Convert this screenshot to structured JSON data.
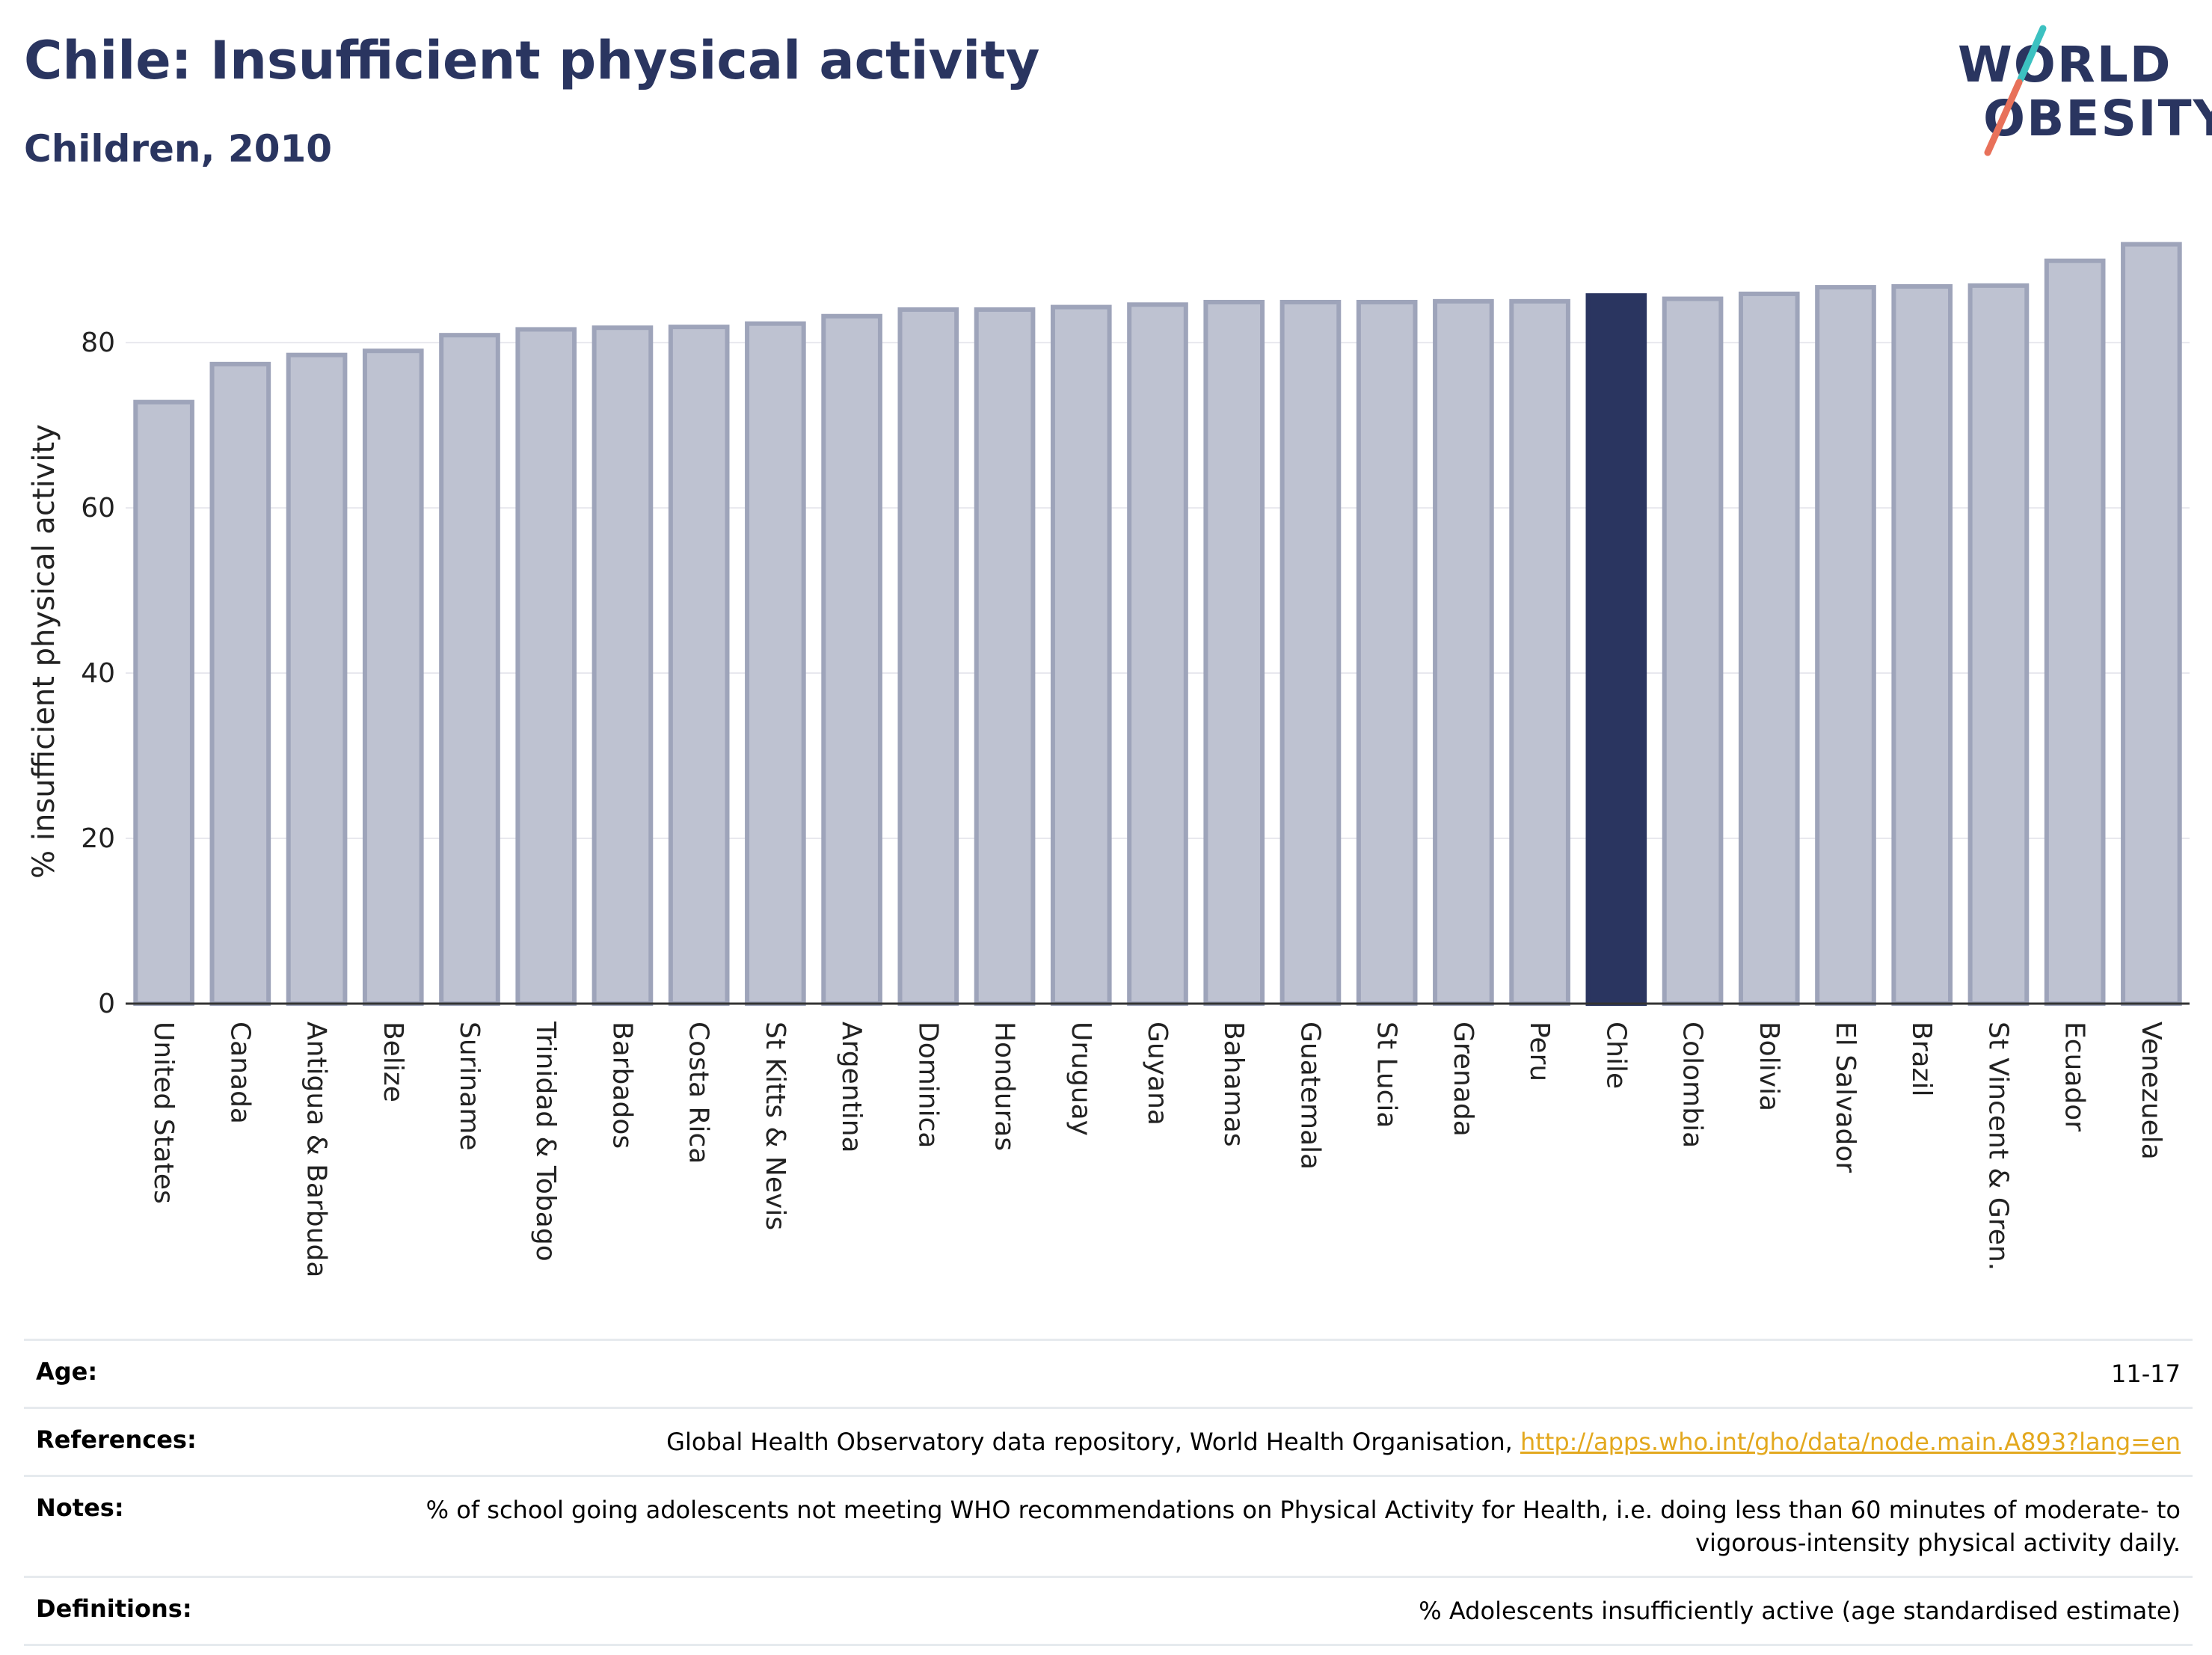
{
  "header": {
    "title": "Chile: Insufficient physical activity",
    "subtitle": "Children, 2010"
  },
  "logo": {
    "line1": "WORLD",
    "line2": "OBESITY",
    "accent_colors": [
      "#3cc1c1",
      "#e8715a"
    ]
  },
  "colors": {
    "bar_default": "#bec2d1",
    "bar_border": "#9ea4ba",
    "bar_highlight": "#2a3560",
    "title": "#2a3560",
    "link": "#e3a81e"
  },
  "chart_data": {
    "type": "bar",
    "ylabel": "% insufficient physical activity",
    "ylim": [
      0,
      92.5
    ],
    "yticks": [
      0,
      20,
      40,
      60,
      80
    ],
    "grid": true,
    "highlight": "Chile",
    "categories": [
      "United States",
      "Canada",
      "Antigua & Barbuda",
      "Belize",
      "Suriname",
      "Trinidad & Tobago",
      "Barbados",
      "Costa Rica",
      "St Kitts & Nevis",
      "Argentina",
      "Dominica",
      "Honduras",
      "Uruguay",
      "Guyana",
      "Bahamas",
      "Guatemala",
      "St Lucia",
      "Grenada",
      "Peru",
      "Chile",
      "Colombia",
      "Bolivia",
      "El Salvador",
      "Brazil",
      "St Vincent & Gren.",
      "Ecuador",
      "Venezuela"
    ],
    "values": [
      72.8,
      77.4,
      78.5,
      79.0,
      80.9,
      81.6,
      81.8,
      81.9,
      82.3,
      83.2,
      84.0,
      84.0,
      84.3,
      84.6,
      84.9,
      84.9,
      84.9,
      85.0,
      85.0,
      85.7,
      85.3,
      85.9,
      86.7,
      86.8,
      86.9,
      89.9,
      91.9
    ]
  },
  "info_table": [
    {
      "key": "Age:",
      "value": "11-17"
    },
    {
      "key": "References:",
      "value": "Global Health Observatory data repository, World Health Organisation, ",
      "link": "http://apps.who.int/gho/data/node.main.A893?lang=en"
    },
    {
      "key": "Notes:",
      "value": "% of school going adolescents not meeting WHO recommendations on Physical Activity for Health, i.e. doing less than 60 minutes of moderate- to vigorous-intensity physical activity daily."
    },
    {
      "key": "Definitions:",
      "value": "% Adolescents insufficiently active (age standardised estimate)"
    }
  ]
}
